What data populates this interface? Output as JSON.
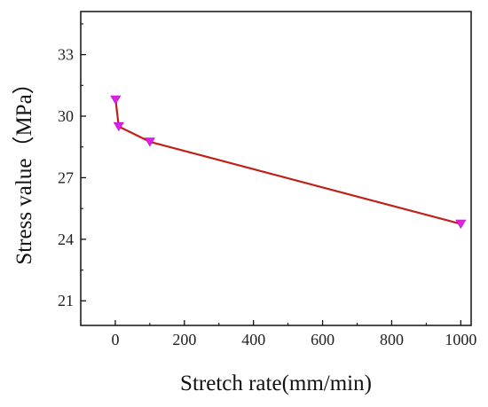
{
  "chart_data": {
    "type": "line",
    "title": "",
    "xlabel": "Stretch rate(mm/min)",
    "ylabel": "Stress value（MPa）",
    "xlim": [
      -100,
      1030
    ],
    "ylim": [
      19.8,
      35.1
    ],
    "x_ticks": [
      0,
      200,
      400,
      600,
      800,
      1000
    ],
    "y_ticks": [
      21,
      24,
      27,
      30,
      33
    ],
    "grid": false,
    "legend": "none",
    "series": [
      {
        "x": [
          1,
          10,
          100,
          1000
        ],
        "y": [
          30.8,
          29.5,
          28.75,
          24.75
        ],
        "line_color": "#c0201a",
        "marker": "triangle-down",
        "marker_color": "#e020e8"
      }
    ]
  }
}
